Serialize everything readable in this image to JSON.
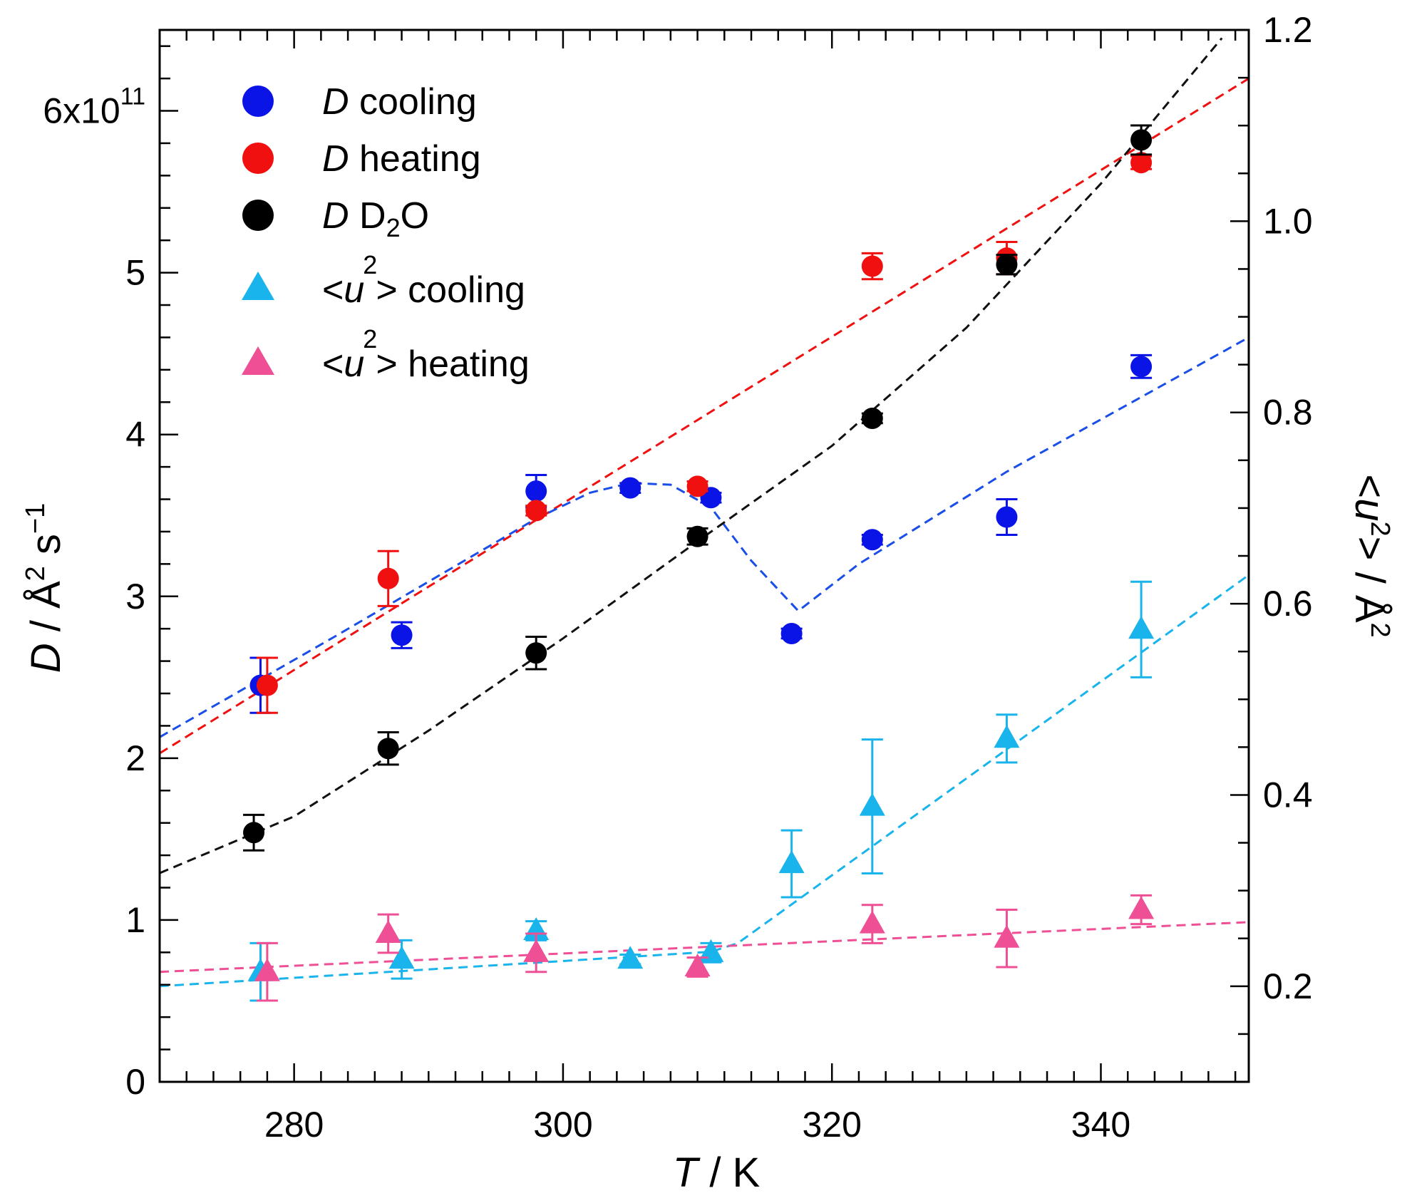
{
  "chart_data": {
    "type": "scatter",
    "x_axis": {
      "label_italic": "T",
      "label_rest": " / K",
      "range": [
        270,
        351
      ],
      "ticks": [
        280,
        300,
        320,
        340
      ],
      "tick_labels": [
        "280",
        "300",
        "320",
        "340"
      ]
    },
    "y_left": {
      "label_italic": "D",
      "label_rest": " / Å",
      "label_sup1": "2",
      "label_mid": " s",
      "label_sup2": "−1",
      "range": [
        0,
        6.5
      ],
      "ticks": [
        0,
        1,
        2,
        3,
        4,
        5,
        6
      ],
      "tick_labels": [
        "0",
        "1",
        "2",
        "3",
        "4",
        "5",
        "6x10"
      ],
      "top_tick_exponent": "11"
    },
    "y_right": {
      "label_open": "<",
      "label_italic": "u",
      "label_sup": "2",
      "label_close": "> / Å",
      "label_sup_unit": "2",
      "range": [
        0.1,
        1.2
      ],
      "ticks": [
        0.2,
        0.4,
        0.6,
        0.8,
        1.0,
        1.2
      ],
      "tick_labels": [
        "0.2",
        "0.4",
        "0.6",
        "0.8",
        "1.0",
        "1.2"
      ]
    },
    "series": [
      {
        "name": "D cooling",
        "legend_italic": "D",
        "legend_rest": " cooling",
        "axis": "left",
        "marker": "circle",
        "color": "#0a14e6",
        "x": [
          277.5,
          288,
          298,
          305,
          311,
          317,
          323,
          333,
          343
        ],
        "y": [
          2.45,
          2.76,
          3.65,
          3.67,
          3.61,
          2.77,
          3.35,
          3.49,
          4.42
        ],
        "err": [
          0.17,
          0.08,
          0.1,
          0.03,
          0.03,
          0.03,
          0.03,
          0.11,
          0.07
        ]
      },
      {
        "name": "D heating",
        "legend_italic": "D",
        "legend_rest": " heating",
        "axis": "left",
        "marker": "circle",
        "color": "#f01010",
        "x": [
          278,
          287,
          298,
          310,
          323,
          333,
          343
        ],
        "y": [
          2.45,
          3.11,
          3.53,
          3.68,
          5.04,
          5.09,
          5.68
        ],
        "err": [
          0.17,
          0.17,
          0.03,
          0.03,
          0.08,
          0.1,
          0.04
        ]
      },
      {
        "name": "D D2O",
        "legend_italic": "D",
        "legend_rest": " D",
        "legend_sub": "2",
        "legend_end": "O",
        "axis": "left",
        "marker": "circle",
        "color": "#000000",
        "x": [
          277,
          287,
          298,
          310,
          323,
          333,
          343
        ],
        "y": [
          1.54,
          2.06,
          2.65,
          3.37,
          4.1,
          5.05,
          5.82
        ],
        "err": [
          0.11,
          0.1,
          0.1,
          0.05,
          0.03,
          0.06,
          0.09
        ]
      },
      {
        "name": "<u2> cooling",
        "legend_open": "<",
        "legend_italic": "u",
        "legend_sup": "2",
        "legend_close": "> cooling",
        "axis": "right",
        "marker": "triangle",
        "color": "#1ab4ec",
        "x": [
          277.5,
          288,
          298,
          305,
          311,
          317,
          323,
          333,
          343
        ],
        "y": [
          0.215,
          0.228,
          0.258,
          0.228,
          0.235,
          0.328,
          0.388,
          0.459,
          0.573
        ],
        "err": [
          0.03,
          0.02,
          0.01,
          0.005,
          0.01,
          0.035,
          0.07,
          0.025,
          0.05
        ]
      },
      {
        "name": "<u2> heating",
        "legend_open": "<",
        "legend_italic": "u",
        "legend_sup": "2",
        "legend_close": "> heating",
        "axis": "right",
        "marker": "triangle",
        "color": "#ee4f95",
        "x": [
          278,
          287,
          298,
          310,
          323,
          333,
          343
        ],
        "y": [
          0.215,
          0.255,
          0.235,
          0.22,
          0.265,
          0.25,
          0.28
        ],
        "err": [
          0.03,
          0.02,
          0.02,
          0.01,
          0.02,
          0.03,
          0.015
        ]
      }
    ],
    "fit_lines": [
      {
        "name": "D heating fit",
        "axis": "left",
        "color": "#f01010",
        "x": [
          270,
          351
        ],
        "y": [
          2.03,
          6.2
        ]
      },
      {
        "name": "D cooling fit",
        "axis": "left",
        "color": "#1a4ee8",
        "x": [
          270,
          283,
          298,
          302,
          305,
          308,
          311,
          314,
          317.5,
          322,
          333,
          351
        ],
        "y": [
          2.13,
          2.75,
          3.48,
          3.64,
          3.7,
          3.69,
          3.55,
          3.22,
          2.91,
          3.2,
          3.77,
          4.6
        ]
      },
      {
        "name": "D D2O fit",
        "axis": "left",
        "color": "#111111",
        "x": [
          270,
          280,
          290,
          300,
          310,
          320,
          330,
          340,
          345,
          349
        ],
        "y": [
          1.29,
          1.64,
          2.17,
          2.74,
          3.34,
          3.93,
          4.66,
          5.55,
          6.05,
          6.45
        ]
      },
      {
        "name": "<u2> cooling fit",
        "axis": "right",
        "color": "#1ab4ec",
        "x": [
          270,
          311,
          313,
          351
        ],
        "y": [
          0.2,
          0.236,
          0.245,
          0.63
        ]
      },
      {
        "name": "<u2> heating fit",
        "axis": "right",
        "color": "#ee4f95",
        "x": [
          270,
          351
        ],
        "y": [
          0.215,
          0.267
        ]
      }
    ]
  }
}
